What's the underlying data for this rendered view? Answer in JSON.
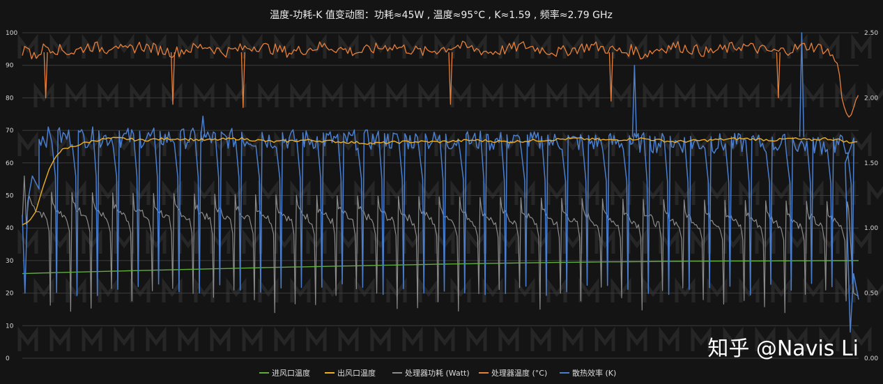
{
  "watermark": "知乎 @Navis Li",
  "chart_data": {
    "type": "line",
    "title": "温度-功耗-K 值变动图：功耗≈45W , 温度≈95°C , K≈1.59 , 频率≈2.79 GHz",
    "xlabel": "",
    "ylabel": "",
    "grid": true,
    "legend_position": "bottom",
    "y_left": {
      "range": [
        0,
        100
      ],
      "ticks": [
        "0",
        "10",
        "20",
        "30",
        "40",
        "50",
        "60",
        "70",
        "80",
        "90",
        "100"
      ]
    },
    "y_right": {
      "range": [
        0,
        2.5
      ],
      "ticks": [
        "0.00",
        "0.50",
        "1.00",
        "1.50",
        "2.00",
        "2.50"
      ]
    },
    "x": {
      "range": [
        0,
        250
      ]
    },
    "cycles": 40,
    "colors": {
      "intake": "#5fae3c",
      "outlet": "#f0b020",
      "power": "#8c8c8c",
      "cpu_temp": "#e8803a",
      "k": "#4a7fd0"
    },
    "series": [
      {
        "name": "进风口温度",
        "key": "intake",
        "axis": "left",
        "x": [
          0,
          10,
          25,
          50,
          75,
          100,
          125,
          150,
          175,
          200,
          225,
          250
        ],
        "values": [
          26,
          26.3,
          26.7,
          27.3,
          27.9,
          28.4,
          28.9,
          29.3,
          29.6,
          29.8,
          29.9,
          30.0
        ]
      },
      {
        "name": "出风口温度",
        "key": "outlet",
        "axis": "left",
        "x": [
          0,
          2,
          4,
          6,
          8,
          10,
          12,
          15,
          18,
          22,
          26,
          30,
          35,
          45,
          55,
          65,
          75,
          85,
          95,
          105,
          115,
          125,
          135,
          145,
          155,
          165,
          175,
          185,
          195,
          205,
          215,
          225,
          230,
          235,
          240,
          245,
          248,
          250
        ],
        "values": [
          41,
          42,
          45,
          52,
          58,
          62,
          64,
          65,
          66,
          67,
          67.5,
          67.5,
          67,
          67.5,
          67,
          67.5,
          66.5,
          67,
          66.5,
          66,
          66.5,
          66.5,
          67,
          66.5,
          67,
          67.5,
          67,
          67.5,
          66.5,
          67,
          67.5,
          67,
          67.5,
          67,
          67.5,
          67,
          66,
          67
        ]
      },
      {
        "name": "处理器功耗 (Watt)",
        "key": "power",
        "axis": "left",
        "base": [
          47,
          44
        ],
        "peak": 55,
        "trough": 14
      },
      {
        "name": "处理器温度 (°C)",
        "key": "cpu_temp",
        "axis": "left",
        "x": [
          0,
          1,
          2,
          3,
          5,
          7,
          10,
          15,
          20,
          25,
          28,
          30,
          35,
          40,
          45,
          50,
          55,
          60,
          65,
          70,
          75,
          80,
          85,
          90,
          95,
          100,
          105,
          110,
          115,
          120,
          125,
          130,
          135,
          140,
          145,
          150,
          155,
          160,
          165,
          170,
          175,
          180,
          183,
          185,
          190,
          195,
          200,
          205,
          210,
          215,
          220,
          225,
          230,
          235,
          240,
          242,
          244,
          245,
          246,
          247,
          248,
          249,
          250
        ],
        "values": [
          93,
          97,
          95,
          92,
          94,
          96,
          95,
          94,
          96,
          95,
          97,
          94,
          96,
          95,
          94,
          95,
          96,
          94,
          95,
          96,
          95,
          94,
          95,
          96,
          95,
          94,
          95,
          96,
          95,
          94,
          95,
          96,
          95,
          94,
          95,
          96,
          95,
          94,
          95,
          96,
          95,
          94,
          95,
          93,
          95,
          96,
          95,
          94,
          95,
          96,
          95,
          94,
          95,
          96,
          95,
          93,
          90,
          80,
          76,
          74,
          75,
          79,
          81
        ]
      },
      {
        "name": "散热效率 (K)",
        "key": "k",
        "axis": "right",
        "base": [
          1.7,
          1.64
        ],
        "trough": [
          0.48,
          0.58
        ]
      }
    ],
    "dips_cpu_temp": [
      {
        "x": 7,
        "y": 80
      },
      {
        "x": 45,
        "y": 78
      },
      {
        "x": 128,
        "y": 78
      },
      {
        "x": 176,
        "y": 79
      },
      {
        "x": 226,
        "y": 80
      },
      {
        "x": 66,
        "y": 77
      }
    ],
    "spikes_k": [
      {
        "x": 183,
        "y": 2.25
      },
      {
        "x": 233,
        "y": 2.5
      },
      {
        "x": 54,
        "y": 1.86
      }
    ]
  }
}
